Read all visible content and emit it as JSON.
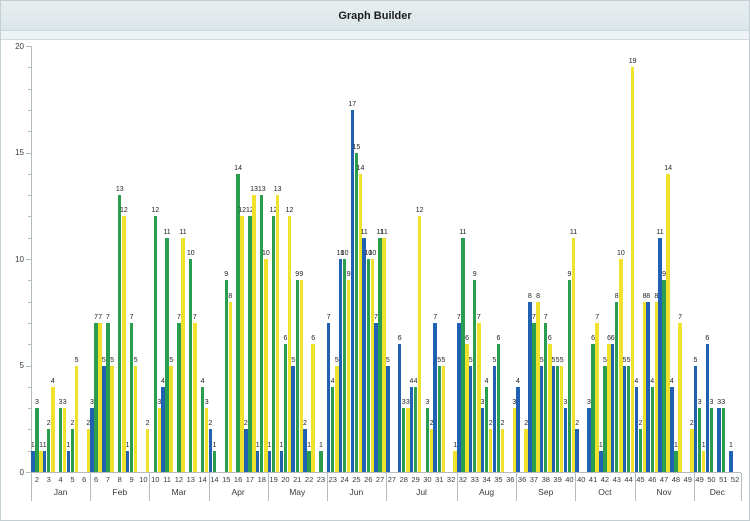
{
  "window": {
    "title": "Graph Builder"
  },
  "chart_data": {
    "type": "bar",
    "title": "Graph Builder",
    "xlabel": "",
    "ylabel": "",
    "grid": false,
    "legend": "none",
    "bar_value_labels_shown": true,
    "y_axis": {
      "min": 0,
      "max": 20,
      "major_step": 5,
      "minor_step": 1,
      "tick_labels": [
        "0",
        "5",
        "10",
        "15",
        "20"
      ]
    },
    "series_order": [
      "blue",
      "green",
      "yellow"
    ],
    "colors": {
      "blue": "#2161B2",
      "green": "#2A9D4E",
      "yellow": "#EFE22C"
    },
    "months": [
      {
        "label": "Jan",
        "weeks": [
          {
            "week": "2",
            "blue": 1,
            "green": 3,
            "yellow": 1
          },
          {
            "week": "3",
            "blue": 1,
            "green": 2,
            "yellow": 4
          },
          {
            "week": "4",
            "blue": 0,
            "green": 3,
            "yellow": 3
          },
          {
            "week": "5",
            "blue": 1,
            "green": 2,
            "yellow": 5
          },
          {
            "week": "6",
            "blue": 0,
            "green": 0,
            "yellow": 2
          }
        ]
      },
      {
        "label": "Feb",
        "weeks": [
          {
            "week": "6",
            "blue": 3,
            "green": 7,
            "yellow": 7
          },
          {
            "week": "7",
            "blue": 5,
            "green": 7,
            "yellow": 5
          },
          {
            "week": "8",
            "blue": 0,
            "green": 13,
            "yellow": 12
          },
          {
            "week": "9",
            "blue": 1,
            "green": 7,
            "yellow": 5
          },
          {
            "week": "10",
            "blue": 0,
            "green": 0,
            "yellow": 2
          }
        ]
      },
      {
        "label": "Mar",
        "weeks": [
          {
            "week": "10",
            "blue": 0,
            "green": 12,
            "yellow": 3
          },
          {
            "week": "11",
            "blue": 4,
            "green": 11,
            "yellow": 5
          },
          {
            "week": "12",
            "blue": 0,
            "green": 7,
            "yellow": 11
          },
          {
            "week": "13",
            "blue": 0,
            "green": 10,
            "yellow": 7
          },
          {
            "week": "14",
            "blue": 0,
            "green": 4,
            "yellow": 3
          }
        ]
      },
      {
        "label": "Apr",
        "weeks": [
          {
            "week": "14",
            "blue": 2,
            "green": 1,
            "yellow": 0
          },
          {
            "week": "15",
            "blue": 0,
            "green": 9,
            "yellow": 8
          },
          {
            "week": "16",
            "blue": 0,
            "green": 14,
            "yellow": 12
          },
          {
            "week": "17",
            "blue": 2,
            "green": 12,
            "yellow": 13
          },
          {
            "week": "18",
            "blue": 1,
            "green": 13,
            "yellow": 10
          }
        ]
      },
      {
        "label": "May",
        "weeks": [
          {
            "week": "19",
            "blue": 1,
            "green": 12,
            "yellow": 13
          },
          {
            "week": "20",
            "blue": 1,
            "green": 6,
            "yellow": 12
          },
          {
            "week": "21",
            "blue": 5,
            "green": 9,
            "yellow": 9
          },
          {
            "week": "22",
            "blue": 2,
            "green": 1,
            "yellow": 6
          },
          {
            "week": "23",
            "blue": 0,
            "green": 1,
            "yellow": 0
          }
        ]
      },
      {
        "label": "Jun",
        "weeks": [
          {
            "week": "23",
            "blue": 7,
            "green": 4,
            "yellow": 5
          },
          {
            "week": "24",
            "blue": 10,
            "green": 10,
            "yellow": 9
          },
          {
            "week": "25",
            "blue": 17,
            "green": 15,
            "yellow": 14
          },
          {
            "week": "26",
            "blue": 11,
            "green": 10,
            "yellow": 10
          },
          {
            "week": "27",
            "blue": 7,
            "green": 11,
            "yellow": 11
          }
        ]
      },
      {
        "label": "Jul",
        "weeks": [
          {
            "week": "27",
            "blue": 5,
            "green": 0,
            "yellow": 0
          },
          {
            "week": "28",
            "blue": 6,
            "green": 3,
            "yellow": 3
          },
          {
            "week": "29",
            "blue": 4,
            "green": 4,
            "yellow": 12
          },
          {
            "week": "30",
            "blue": 0,
            "green": 3,
            "yellow": 2
          },
          {
            "week": "31",
            "blue": 7,
            "green": 5,
            "yellow": 5
          },
          {
            "week": "32",
            "blue": 0,
            "green": 0,
            "yellow": 1
          }
        ]
      },
      {
        "label": "Aug",
        "weeks": [
          {
            "week": "32",
            "blue": 7,
            "green": 11,
            "yellow": 6
          },
          {
            "week": "33",
            "blue": 5,
            "green": 9,
            "yellow": 7
          },
          {
            "week": "34",
            "blue": 3,
            "green": 4,
            "yellow": 2
          },
          {
            "week": "35",
            "blue": 5,
            "green": 6,
            "yellow": 2
          },
          {
            "week": "36",
            "blue": 0,
            "green": 0,
            "yellow": 3
          }
        ]
      },
      {
        "label": "Sep",
        "weeks": [
          {
            "week": "36",
            "blue": 4,
            "green": 0,
            "yellow": 2
          },
          {
            "week": "37",
            "blue": 8,
            "green": 7,
            "yellow": 8
          },
          {
            "week": "38",
            "blue": 5,
            "green": 7,
            "yellow": 6
          },
          {
            "week": "39",
            "blue": 5,
            "green": 5,
            "yellow": 5
          },
          {
            "week": "40",
            "blue": 3,
            "green": 9,
            "yellow": 11
          }
        ]
      },
      {
        "label": "Oct",
        "weeks": [
          {
            "week": "40",
            "blue": 2,
            "green": 0,
            "yellow": 0
          },
          {
            "week": "41",
            "blue": 3,
            "green": 6,
            "yellow": 7
          },
          {
            "week": "42",
            "blue": 1,
            "green": 5,
            "yellow": 6
          },
          {
            "week": "43",
            "blue": 6,
            "green": 8,
            "yellow": 10
          },
          {
            "week": "44",
            "blue": 5,
            "green": 5,
            "yellow": 19
          }
        ]
      },
      {
        "label": "Nov",
        "weeks": [
          {
            "week": "45",
            "blue": 4,
            "green": 2,
            "yellow": 8
          },
          {
            "week": "46",
            "blue": 8,
            "green": 4,
            "yellow": 8
          },
          {
            "week": "47",
            "blue": 11,
            "green": 9,
            "yellow": 14
          },
          {
            "week": "48",
            "blue": 4,
            "green": 1,
            "yellow": 7
          },
          {
            "week": "49",
            "blue": 0,
            "green": 0,
            "yellow": 2
          }
        ]
      },
      {
        "label": "Dec",
        "weeks": [
          {
            "week": "49",
            "blue": 5,
            "green": 3,
            "yellow": 1
          },
          {
            "week": "50",
            "blue": 6,
            "green": 3,
            "yellow": 0
          },
          {
            "week": "51",
            "blue": 3,
            "green": 3,
            "yellow": 0
          },
          {
            "week": "52",
            "blue": 1,
            "green": 0,
            "yellow": 0
          }
        ]
      }
    ]
  }
}
